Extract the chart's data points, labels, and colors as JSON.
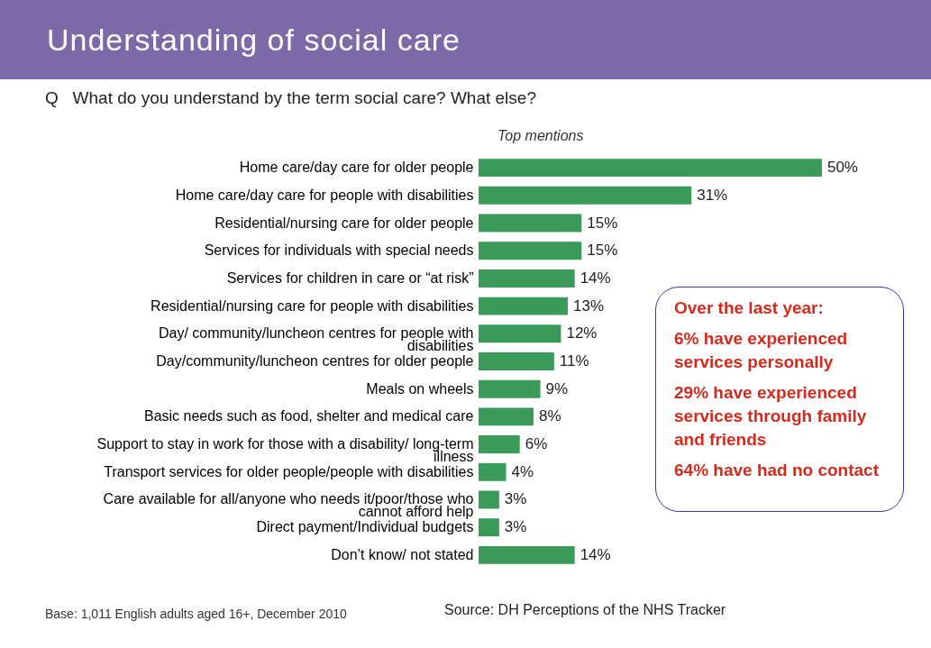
{
  "chart_data": {
    "type": "bar",
    "orientation": "horizontal",
    "title": "Understanding of social care",
    "subtitle": "Q   What do you understand by the term social care? What else?",
    "categories": [
      "Home care/day care for older people",
      "Home care/day care for people with disabilities",
      "Residential/nursing care for older people",
      "Services for individuals with special needs",
      "Services for children in care or “at risk”",
      "Residential/nursing care for people with disabilities",
      "Day/ community/luncheon centres for people with disabilities",
      "Day/community/luncheon centres for older people",
      "Meals on wheels",
      "Basic needs such as food, shelter and medical care",
      "Support to stay in work for those with a disability/ long-term illness",
      "Transport services for older people/people with disabilities",
      "Care available for all/anyone who needs it/poor/those who cannot afford help",
      "Direct payment/Individual budgets",
      "Don’t know/ not stated"
    ],
    "values": [
      50,
      31,
      15,
      15,
      14,
      13,
      12,
      11,
      9,
      8,
      6,
      4,
      3,
      3,
      14
    ],
    "value_labels": [
      "50%",
      "31%",
      "15%",
      "15%",
      "14%",
      "13%",
      "12%",
      "11%",
      "9%",
      "8%",
      "6%",
      "4%",
      "3%",
      "3%",
      "14%"
    ],
    "color": "#3a9a5a",
    "annotations": [
      "Top mentions",
      "Over the last year:",
      "6% have experienced services personally",
      "29% have experienced services through family and friends",
      "64% have had no contact",
      "Base: 1,011 English adults aged 16+, December 2010",
      "Source: DH Perceptions of the NHS Tracker"
    ]
  }
}
